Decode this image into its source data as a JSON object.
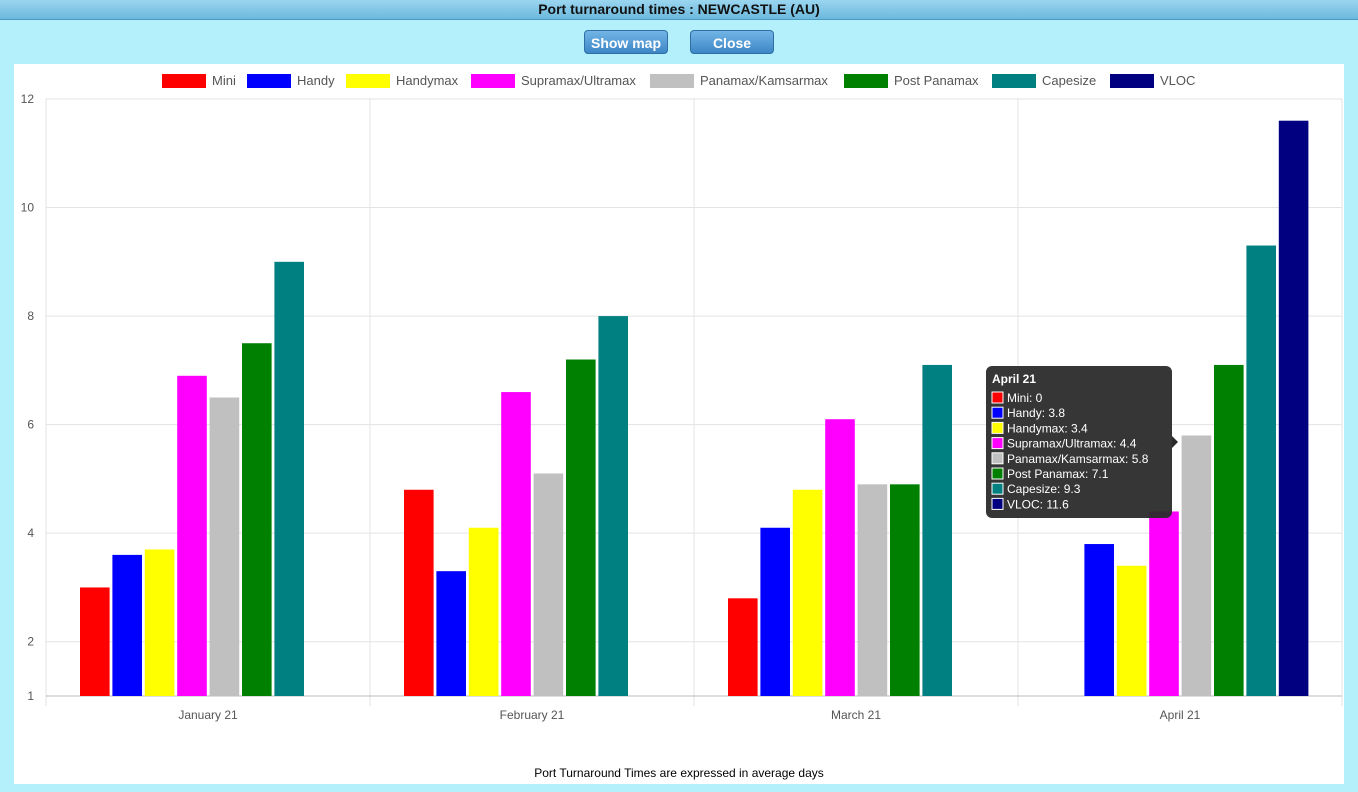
{
  "window": {
    "title": "Port turnaround times : NEWCASTLE (AU)"
  },
  "buttons": {
    "show_map": "Show map",
    "close": "Close"
  },
  "footnote": "Port Turnaround Times are expressed in average days",
  "chart_data": {
    "type": "bar",
    "categories": [
      "January 21",
      "February 21",
      "March 21",
      "April 21"
    ],
    "ylim": [
      1,
      12
    ],
    "yticks": [
      1,
      2,
      4,
      6,
      8,
      10,
      12
    ],
    "grid": true,
    "legend_position": "top",
    "series": [
      {
        "name": "Mini",
        "color": "#ff0000",
        "values": [
          3.0,
          4.8,
          2.8,
          0
        ]
      },
      {
        "name": "Handy",
        "color": "#0000ff",
        "values": [
          3.6,
          3.3,
          4.1,
          3.8
        ]
      },
      {
        "name": "Handymax",
        "color": "#ffff00",
        "values": [
          3.7,
          4.1,
          4.8,
          3.4
        ]
      },
      {
        "name": "Supramax/Ultramax",
        "color": "#ff00ff",
        "values": [
          6.9,
          6.6,
          6.1,
          4.4
        ]
      },
      {
        "name": "Panamax/Kamsarmax",
        "color": "#c0c0c0",
        "values": [
          6.5,
          5.1,
          4.9,
          5.8
        ]
      },
      {
        "name": "Post Panamax",
        "color": "#008000",
        "values": [
          7.5,
          7.2,
          4.9,
          7.1
        ]
      },
      {
        "name": "Capesize",
        "color": "#008080",
        "values": [
          9.0,
          8.0,
          7.1,
          9.3
        ]
      },
      {
        "name": "VLOC",
        "color": "#000080",
        "values": [
          null,
          null,
          null,
          11.6
        ]
      }
    ],
    "tooltip": {
      "title": "April 21",
      "lines": [
        "Mini: 0",
        "Handy: 3.8",
        "Handymax: 3.4",
        "Supramax/Ultramax: 4.4",
        "Panamax/Kamsarmax: 5.8",
        "Post Panamax: 7.1",
        "Capesize: 9.3",
        "VLOC: 11.6"
      ]
    }
  }
}
